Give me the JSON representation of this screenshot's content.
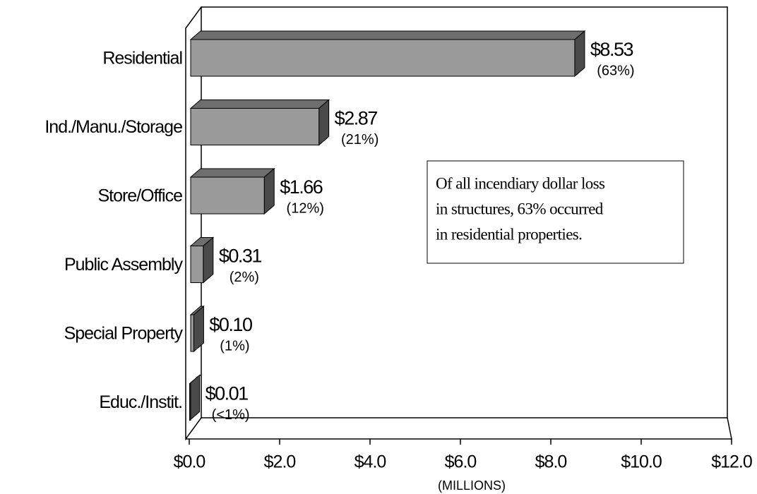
{
  "chart_data": {
    "type": "bar3d_horizontal",
    "categories": [
      "Residential",
      "Ind./Manu./Storage",
      "Store/Office",
      "Public Assembly",
      "Special Property",
      "Educ./Instit."
    ],
    "values": [
      8.53,
      2.87,
      1.66,
      0.31,
      0.1,
      0.01
    ],
    "value_labels": [
      "$8.53",
      "$2.87",
      "$1.66",
      "$0.31",
      "$0.10",
      "$0.01"
    ],
    "share_labels": [
      "(63%)",
      "(21%)",
      "(12%)",
      "(2%)",
      "(1%)",
      "(<1%)"
    ],
    "color": "#9a9a9a",
    "xlim": [
      0,
      12
    ],
    "xticks": [
      {
        "value": 0,
        "label": "$0.0"
      },
      {
        "value": 2,
        "label": "$2.0"
      },
      {
        "value": 4,
        "label": "$4.0"
      },
      {
        "value": 6,
        "label": "$6.0"
      },
      {
        "value": 8,
        "label": "$8.0"
      },
      {
        "value": 10,
        "label": "$10.0"
      },
      {
        "value": 12,
        "label": "$12.0"
      }
    ],
    "x_label": "(MILLIONS)",
    "annotation": [
      "Of all incendiary dollar loss",
      "in structures, 63% occurred",
      "in residential properties."
    ]
  }
}
